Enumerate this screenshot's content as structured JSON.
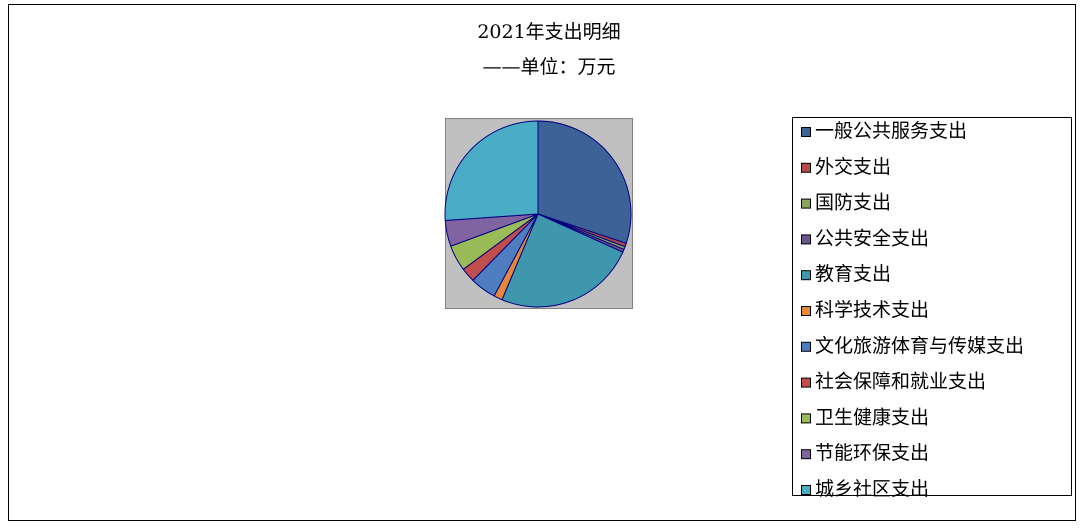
{
  "chart_data": {
    "type": "pie",
    "title": "2021年支出明细",
    "subtitle": "——单位：万元",
    "series": [
      {
        "name": "一般公共服务支出",
        "color": "#3c6298",
        "values": [
          30
        ]
      },
      {
        "name": "外交支出",
        "color": "#b54a47",
        "values": [
          0.6
        ]
      },
      {
        "name": "国防支出",
        "color": "#8aa45a",
        "values": [
          0.5
        ]
      },
      {
        "name": "公共安全支出",
        "color": "#6b5490",
        "values": [
          0.5
        ]
      },
      {
        "name": "教育支出",
        "color": "#3f97ae",
        "values": [
          24.5
        ]
      },
      {
        "name": "科学技术支出",
        "color": "#e5883a",
        "values": [
          1.5
        ]
      },
      {
        "name": "文化旅游体育与传媒支出",
        "color": "#4f7ec0",
        "values": [
          4.5
        ]
      },
      {
        "name": "社会保障和就业支出",
        "color": "#c04e4c",
        "values": [
          2.5
        ]
      },
      {
        "name": "卫生健康支出",
        "color": "#9bbb59",
        "values": [
          4.5
        ]
      },
      {
        "name": "节能环保支出",
        "color": "#8064a2",
        "values": [
          4.5
        ]
      },
      {
        "name": "城乡社区支出",
        "color": "#4bacc6",
        "values": [
          26
        ]
      }
    ]
  }
}
